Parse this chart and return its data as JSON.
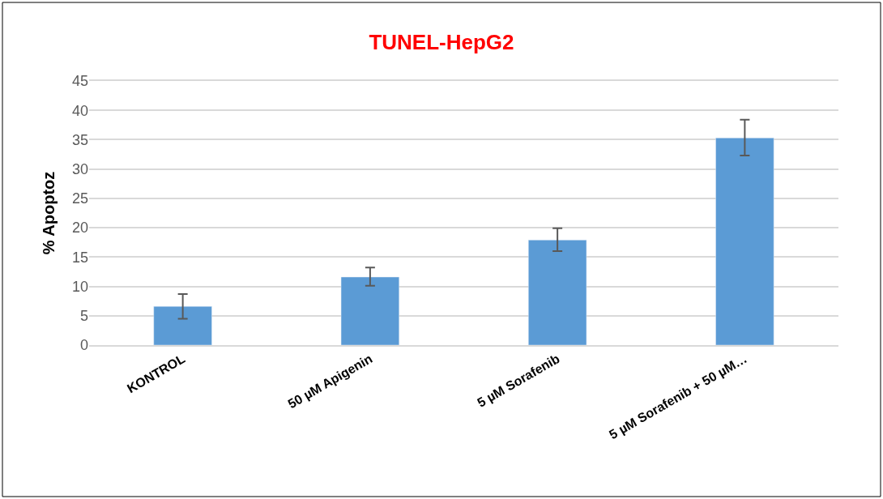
{
  "chart_data": {
    "type": "bar",
    "title": "TUNEL-HepG2",
    "ylabel": "% Apoptoz",
    "categories": [
      "KONTROL",
      "50 µM Apigenin",
      "5 µM Sorafenib",
      "5 µM Sorafenib + 50 µM…"
    ],
    "values": [
      6.6,
      11.6,
      17.9,
      35.3
    ],
    "errors": [
      [
        4.5,
        8.7
      ],
      [
        10.1,
        13.2
      ],
      [
        16.0,
        19.9
      ],
      [
        32.3,
        38.4
      ]
    ],
    "color": "#5b9bd5",
    "ylim": [
      0,
      45
    ],
    "yticks": [
      0,
      5,
      10,
      15,
      20,
      25,
      30,
      35,
      40,
      45
    ],
    "grid": "y"
  }
}
